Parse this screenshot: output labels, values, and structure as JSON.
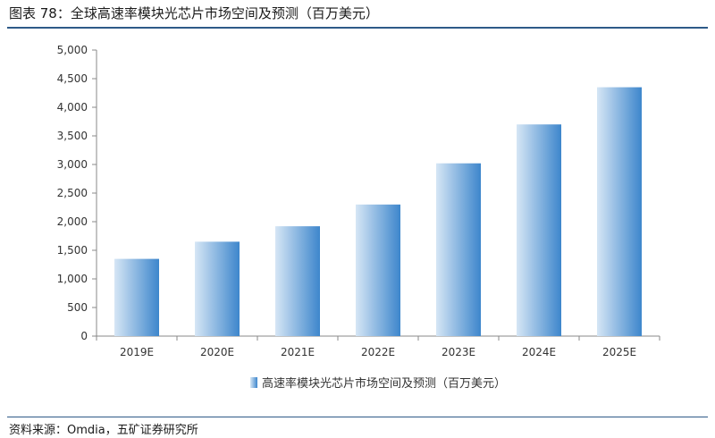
{
  "figure": {
    "title": "图表 78：全球高速率模块光芯片市场空间及预测（百万美元）",
    "source": "资料来源：Omdia，五矿证券研究所"
  },
  "chart_data": {
    "type": "bar",
    "categories": [
      "2019E",
      "2020E",
      "2021E",
      "2022E",
      "2023E",
      "2024E",
      "2025E"
    ],
    "series": [
      {
        "name": "高速率模块光芯片市场空间及预测（百万美元）",
        "values": [
          1350,
          1650,
          1920,
          2300,
          3020,
          3700,
          4350
        ]
      }
    ],
    "yticks": [
      "0",
      "500",
      "1,000",
      "1,500",
      "2,000",
      "2,500",
      "3,000",
      "3,500",
      "4,000",
      "4,500",
      "5,000"
    ],
    "ylim": [
      0,
      5000
    ],
    "grid": false,
    "legend_position": "bottom",
    "colors": {
      "bar_light": "#d6e6f5",
      "bar_dark": "#3d86cc",
      "axis": "#888888",
      "rule": "#2e5a88"
    }
  }
}
